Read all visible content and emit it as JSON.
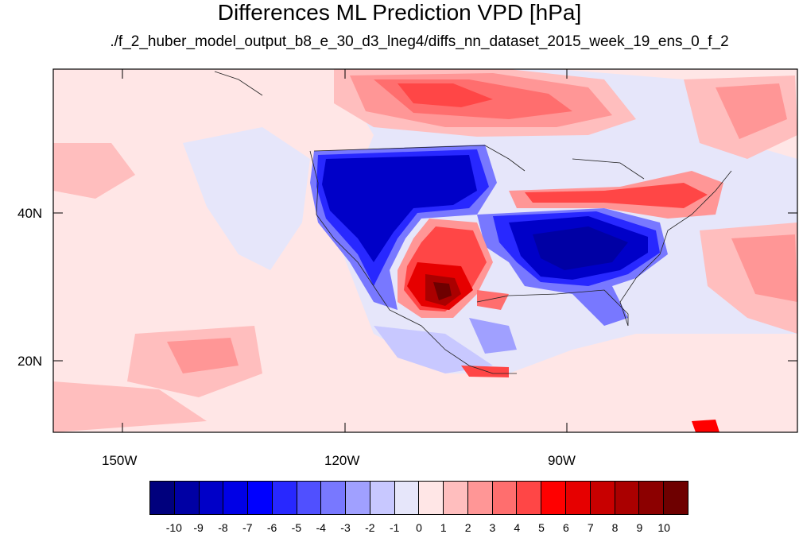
{
  "title": "Differences ML Prediction VPD [hPa]",
  "subtitle": "./f_2_huber_model_output_b8_e_30_d3_lneg4/diffs_nn_dataset_2015_week_19_ens_0_f_2",
  "lon_labels": [
    "150W",
    "120W",
    "90W"
  ],
  "lat_labels": [
    "40N",
    "20N"
  ],
  "colorbar": {
    "colors": [
      "#00007d",
      "#0000a4",
      "#0000c8",
      "#0000e6",
      "#0000ff",
      "#2828ff",
      "#5050ff",
      "#7878ff",
      "#a0a0ff",
      "#c8c8ff",
      "#e6e6fa",
      "#ffe6e6",
      "#ffbebe",
      "#ff9696",
      "#ff6e6e",
      "#ff4646",
      "#ff0000",
      "#e60000",
      "#c80000",
      "#aa0000",
      "#8c0000",
      "#6e0000"
    ],
    "tick_labels": [
      "-10",
      "-9",
      "-8",
      "-7",
      "-6",
      "-5",
      "-4",
      "-3",
      "-2",
      "-1",
      "0",
      "1",
      "2",
      "3",
      "4",
      "5",
      "6",
      "7",
      "8",
      "9",
      "10"
    ]
  }
}
